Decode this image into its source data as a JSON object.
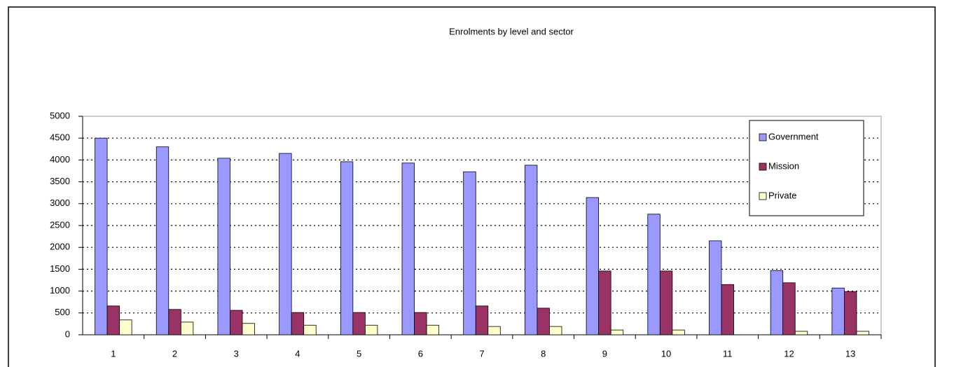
{
  "chart_data": {
    "type": "bar",
    "title": "Enrolments by level and sector",
    "categories": [
      "1",
      "2",
      "3",
      "4",
      "5",
      "6",
      "7",
      "8",
      "9",
      "10",
      "11",
      "12",
      "13"
    ],
    "series": [
      {
        "name": "Government",
        "color": "#9999ff",
        "values": [
          4500,
          4300,
          4040,
          4150,
          3960,
          3930,
          3730,
          3880,
          3140,
          2760,
          2150,
          1470,
          1070
        ]
      },
      {
        "name": "Mission",
        "color": "#993366",
        "values": [
          660,
          580,
          560,
          510,
          510,
          510,
          660,
          610,
          1460,
          1460,
          1150,
          1190,
          990
        ]
      },
      {
        "name": "Private",
        "color": "#ffffcc",
        "values": [
          340,
          290,
          260,
          220,
          220,
          220,
          190,
          190,
          110,
          110,
          0,
          80,
          80
        ]
      }
    ],
    "ylim": [
      0,
      5000
    ],
    "yticks": [
      0,
      500,
      1000,
      1500,
      2000,
      2500,
      3000,
      3500,
      4000,
      4500,
      5000
    ],
    "grid": true,
    "legend": "top-right"
  }
}
